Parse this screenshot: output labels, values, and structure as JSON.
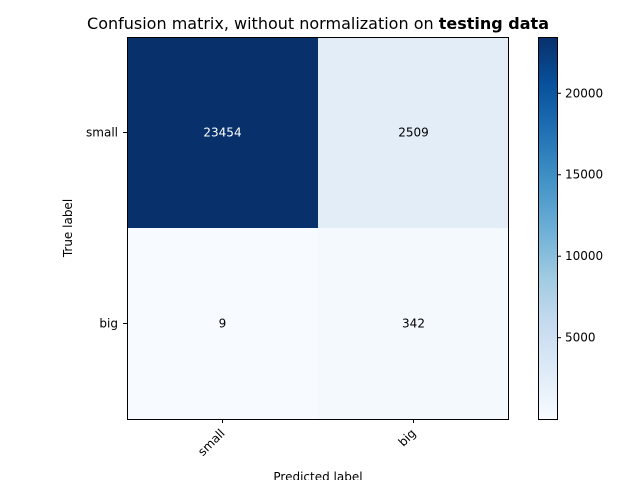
{
  "chart_data": {
    "type": "heatmap",
    "title_prefix": "Confusion matrix, without normalization on ",
    "title_emphasis": "testing data",
    "xlabel": "Predicted label",
    "ylabel": "True label",
    "row_labels": [
      "small",
      "big"
    ],
    "col_labels": [
      "small",
      "big"
    ],
    "values": [
      [
        23454,
        2509
      ],
      [
        9,
        342
      ]
    ],
    "colormap": "Blues",
    "value_range": [
      9,
      23454
    ],
    "colorbar_ticks": [
      5000,
      10000,
      15000,
      20000
    ],
    "text_colors": {
      "dark_cell": "#ffffff",
      "light_cell": "#000000"
    }
  }
}
